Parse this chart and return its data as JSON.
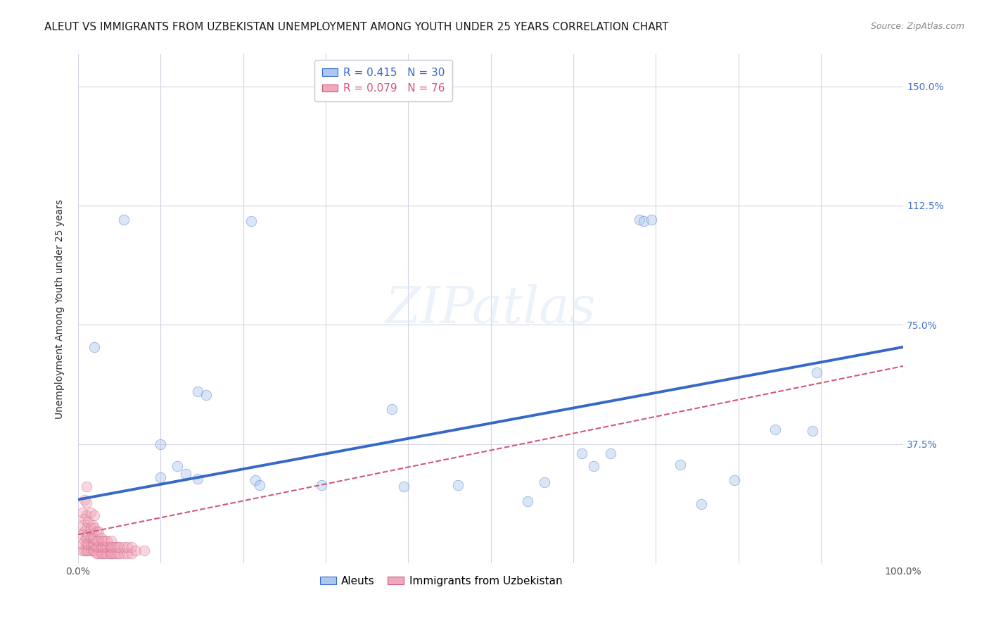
{
  "title": "ALEUT VS IMMIGRANTS FROM UZBEKISTAN UNEMPLOYMENT AMONG YOUTH UNDER 25 YEARS CORRELATION CHART",
  "source": "Source: ZipAtlas.com",
  "ylabel": "Unemployment Among Youth under 25 years",
  "xlim": [
    0.0,
    1.0
  ],
  "ylim": [
    0.0,
    1.6
  ],
  "xticks": [
    0.0,
    0.1,
    0.2,
    0.3,
    0.4,
    0.5,
    0.6,
    0.7,
    0.8,
    0.9,
    1.0
  ],
  "xticklabels": [
    "0.0%",
    "",
    "",
    "",
    "",
    "",
    "",
    "",
    "",
    "",
    "100.0%"
  ],
  "yticks": [
    0.0,
    0.375,
    0.75,
    1.125,
    1.5
  ],
  "yticklabels": [
    "",
    "37.5%",
    "75.0%",
    "112.5%",
    "150.0%"
  ],
  "aleuts_R": 0.415,
  "aleuts_N": 30,
  "uzbek_R": 0.079,
  "uzbek_N": 76,
  "aleuts_color": "#adc8ed",
  "uzbek_color": "#f0a8bc",
  "aleuts_line_color": "#3568c8",
  "uzbek_line_color": "#d05878",
  "background_color": "#ffffff",
  "aleuts_x": [
    0.02,
    0.055,
    0.1,
    0.1,
    0.12,
    0.13,
    0.145,
    0.145,
    0.155,
    0.21,
    0.215,
    0.22,
    0.295,
    0.38,
    0.395,
    0.46,
    0.545,
    0.565,
    0.61,
    0.625,
    0.645,
    0.68,
    0.685,
    0.695,
    0.73,
    0.755,
    0.795,
    0.845,
    0.89,
    0.895
  ],
  "aleuts_y": [
    0.68,
    1.08,
    0.375,
    0.27,
    0.305,
    0.28,
    0.265,
    0.54,
    0.53,
    1.075,
    0.26,
    0.245,
    0.245,
    0.485,
    0.24,
    0.245,
    0.195,
    0.255,
    0.345,
    0.305,
    0.345,
    1.08,
    1.075,
    1.08,
    0.31,
    0.185,
    0.26,
    0.42,
    0.415,
    0.6
  ],
  "uzbek_x": [
    0.005,
    0.005,
    0.005,
    0.005,
    0.005,
    0.008,
    0.008,
    0.008,
    0.008,
    0.008,
    0.01,
    0.01,
    0.01,
    0.01,
    0.01,
    0.01,
    0.01,
    0.012,
    0.012,
    0.012,
    0.012,
    0.015,
    0.015,
    0.015,
    0.015,
    0.015,
    0.018,
    0.018,
    0.018,
    0.018,
    0.02,
    0.02,
    0.02,
    0.02,
    0.02,
    0.022,
    0.022,
    0.022,
    0.022,
    0.025,
    0.025,
    0.025,
    0.025,
    0.028,
    0.028,
    0.028,
    0.03,
    0.03,
    0.03,
    0.032,
    0.032,
    0.032,
    0.035,
    0.035,
    0.035,
    0.038,
    0.038,
    0.04,
    0.04,
    0.04,
    0.042,
    0.042,
    0.045,
    0.045,
    0.048,
    0.048,
    0.05,
    0.05,
    0.055,
    0.055,
    0.06,
    0.06,
    0.065,
    0.065,
    0.07,
    0.08
  ],
  "uzbek_y": [
    0.04,
    0.06,
    0.09,
    0.12,
    0.16,
    0.04,
    0.07,
    0.1,
    0.14,
    0.2,
    0.04,
    0.06,
    0.08,
    0.11,
    0.15,
    0.19,
    0.24,
    0.04,
    0.06,
    0.09,
    0.13,
    0.04,
    0.06,
    0.08,
    0.11,
    0.16,
    0.04,
    0.06,
    0.08,
    0.12,
    0.04,
    0.06,
    0.08,
    0.11,
    0.15,
    0.03,
    0.05,
    0.07,
    0.1,
    0.03,
    0.05,
    0.07,
    0.1,
    0.03,
    0.05,
    0.08,
    0.03,
    0.05,
    0.07,
    0.03,
    0.05,
    0.07,
    0.03,
    0.05,
    0.07,
    0.03,
    0.05,
    0.03,
    0.05,
    0.07,
    0.03,
    0.05,
    0.03,
    0.05,
    0.03,
    0.05,
    0.03,
    0.05,
    0.03,
    0.05,
    0.03,
    0.05,
    0.03,
    0.05,
    0.04,
    0.04
  ],
  "legend_border_color": "#c8c8d8",
  "title_fontsize": 11,
  "axis_label_fontsize": 10,
  "tick_fontsize": 10,
  "legend_fontsize": 11,
  "source_fontsize": 9,
  "marker_size": 110,
  "marker_alpha": 0.45,
  "grid_color": "#d4d4e4",
  "aleuts_line_start_y": 0.2,
  "aleuts_line_end_y": 0.68,
  "uzbek_line_start_y": 0.09,
  "uzbek_line_end_y": 0.62
}
